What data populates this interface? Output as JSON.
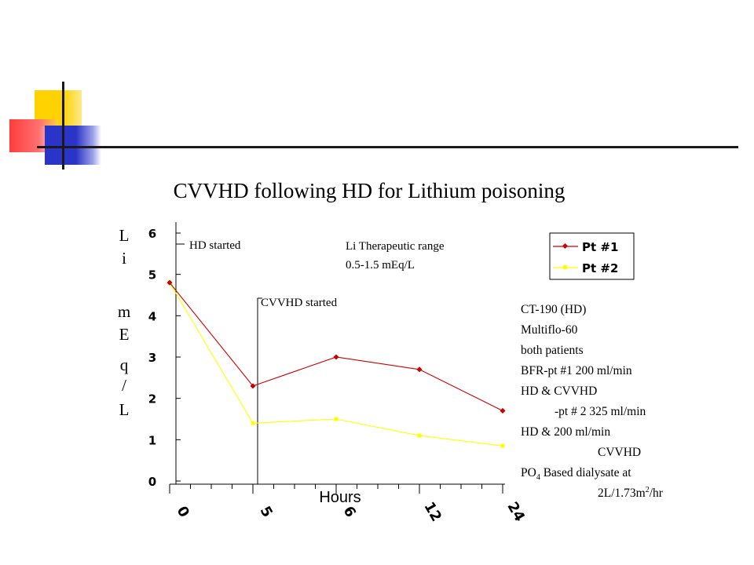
{
  "slide": {
    "title": "CVVHD following HD for Lithium poisoning"
  },
  "colors": {
    "pt1": "#cc0000",
    "pt2": "#ffff00",
    "deco_yellow": "#ffd200",
    "deco_red": "#ff3c3c",
    "deco_blue": "#2a34c8",
    "rule": "#1a1a1a"
  },
  "chart_data": {
    "type": "line",
    "title": "CVVHD following HD for Lithium poisoning",
    "xlabel": "Hours",
    "ylabel": "Li mEq/L",
    "ylabel_letters": [
      "L",
      "i",
      "m",
      "E",
      "q",
      "/",
      "L"
    ],
    "categories": [
      "0",
      "5",
      "6",
      "12",
      "24"
    ],
    "ylim": [
      0,
      6
    ],
    "yticks": [
      "0",
      "1",
      "2",
      "3",
      "4",
      "5",
      "6"
    ],
    "grid": false,
    "legend": "top-right",
    "series": [
      {
        "name": "Pt #1",
        "color": "#cc0000",
        "marker": "diamond",
        "values": [
          4.8,
          2.3,
          3.0,
          2.7,
          1.7
        ]
      },
      {
        "name": "Pt #2",
        "color": "#ffff00",
        "marker": "square",
        "values": [
          4.8,
          1.4,
          1.5,
          1.1,
          0.85
        ]
      }
    ],
    "annotations": {
      "hd_started": "HD started",
      "cvvhd_started": "CVVHD started",
      "therapeutic_range_line1": "Li Therapeutic range",
      "therapeutic_range_line2": "0.5-1.5 mEq/L"
    },
    "notes": {
      "line1": "CT-190 (HD)",
      "line2": "Multiflo-60",
      "line3": "both patients",
      "line4": "BFR-pt #1 200 ml/min",
      "line5": "HD & CVVHD",
      "line6": "-pt # 2 325 ml/min",
      "line7": "HD & 200 ml/min",
      "line8": "CVVHD",
      "line9_prefix": "PO",
      "line9_sub": "4",
      "line9_suffix": " Based dialysate at",
      "line10_prefix": "2L/1.73m",
      "line10_sup": "2",
      "line10_suffix": "/hr"
    }
  }
}
